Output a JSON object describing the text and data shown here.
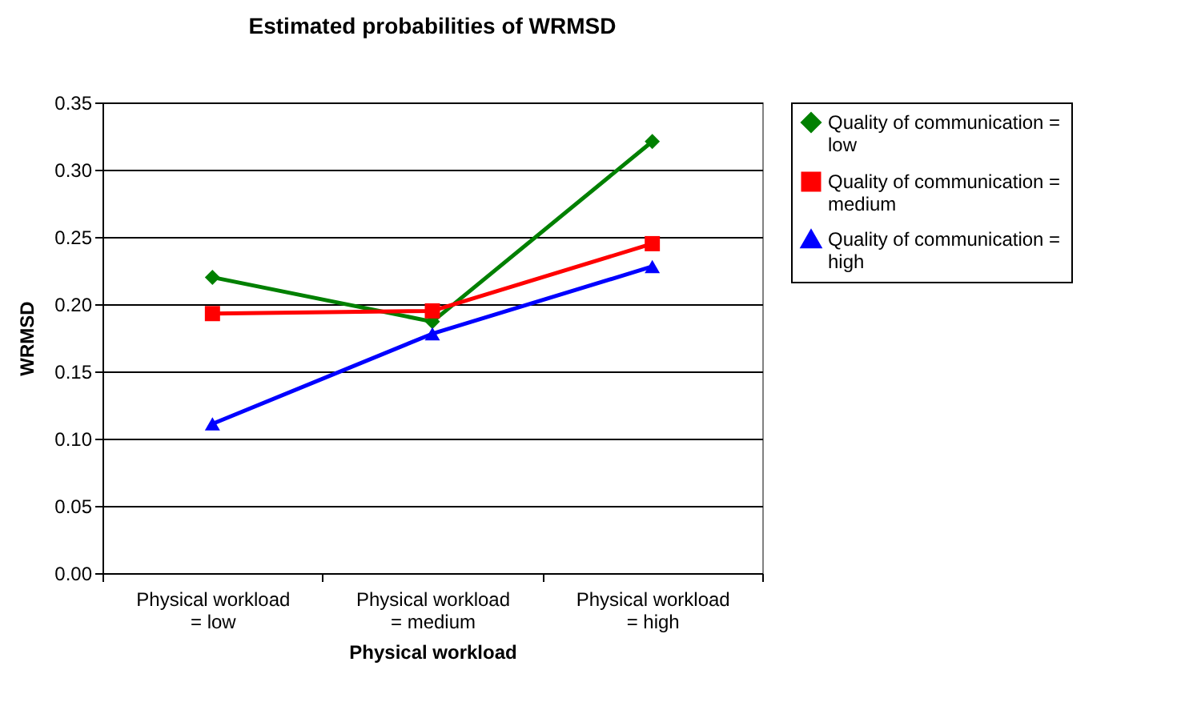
{
  "chart_data": {
    "type": "line",
    "title": "Estimated probabilities of WRMSD",
    "xlabel": "Physical workload",
    "ylabel": "WRMSD",
    "categories": [
      "Physical workload = low",
      "Physical workload = medium",
      "Physical workload = high"
    ],
    "series": [
      {
        "name": "Quality of communication = low",
        "color": "#008000",
        "marker": "diamond",
        "values": [
          0.22,
          0.187,
          0.321
        ]
      },
      {
        "name": "Quality of communication = medium",
        "color": "#ff0000",
        "marker": "square",
        "values": [
          0.193,
          0.195,
          0.245
        ]
      },
      {
        "name": "Quality of communication = high",
        "color": "#0000ff",
        "marker": "triangle",
        "values": [
          0.111,
          0.178,
          0.228
        ]
      }
    ],
    "ylim": [
      0,
      0.35
    ],
    "yticks": [
      {
        "value": 0,
        "label": "0.00"
      },
      {
        "value": 0.05,
        "label": "0.05"
      },
      {
        "value": 0.1,
        "label": "0.10"
      },
      {
        "value": 0.15,
        "label": "0.15"
      },
      {
        "value": 0.2,
        "label": "0.20"
      },
      {
        "value": 0.25,
        "label": "0.25"
      },
      {
        "value": 0.3,
        "label": "0.30"
      },
      {
        "value": 0.35,
        "label": "0.35"
      }
    ],
    "grid": "y",
    "legend": "right",
    "line_style": "solid"
  }
}
